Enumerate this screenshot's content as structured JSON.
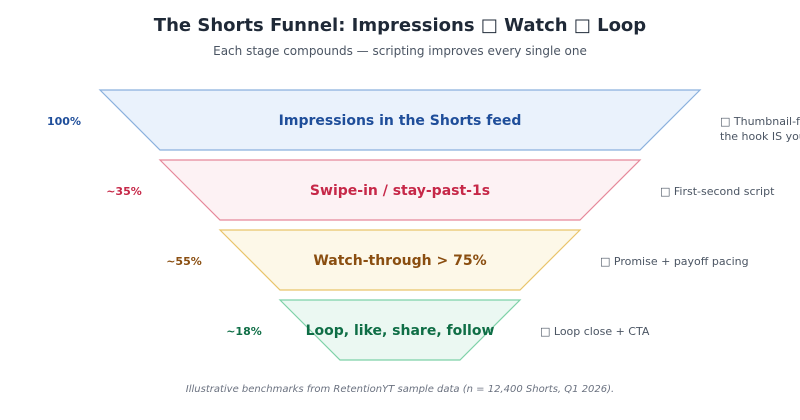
{
  "header": {
    "title": "The Shorts Funnel: Impressions □ Watch □ Loop",
    "subtitle": "Each stage compounds — scripting improves every single one"
  },
  "stages": [
    {
      "label": "Impressions in the Shorts feed",
      "pct": "100%",
      "note": "□ Thumbnail-fr",
      "note2": "the hook IS you",
      "fill": "#eaf2fc",
      "stroke": "#8ab0dd",
      "text_color": "#1f4e9a"
    },
    {
      "label": "Swipe-in / stay-past-1s",
      "pct": "~35%",
      "note": "□ First-second script",
      "fill": "#fdf2f4",
      "stroke": "#e6889a",
      "text_color": "#c62848"
    },
    {
      "label": "Watch-through > 75%",
      "pct": "~55%",
      "note": "□ Promise + payoff pacing",
      "fill": "#fdf8e8",
      "stroke": "#e9c46a",
      "text_color": "#8a4e10"
    },
    {
      "label": "Loop, like, share, follow",
      "pct": "~18%",
      "note": "□ Loop close + CTA",
      "fill": "#ebf8f2",
      "stroke": "#7ed1a8",
      "text_color": "#0f6e46"
    }
  ],
  "footnote": "Illustrative benchmarks from RetentionYT sample data (n = 12,400 Shorts, Q1 2026)."
}
